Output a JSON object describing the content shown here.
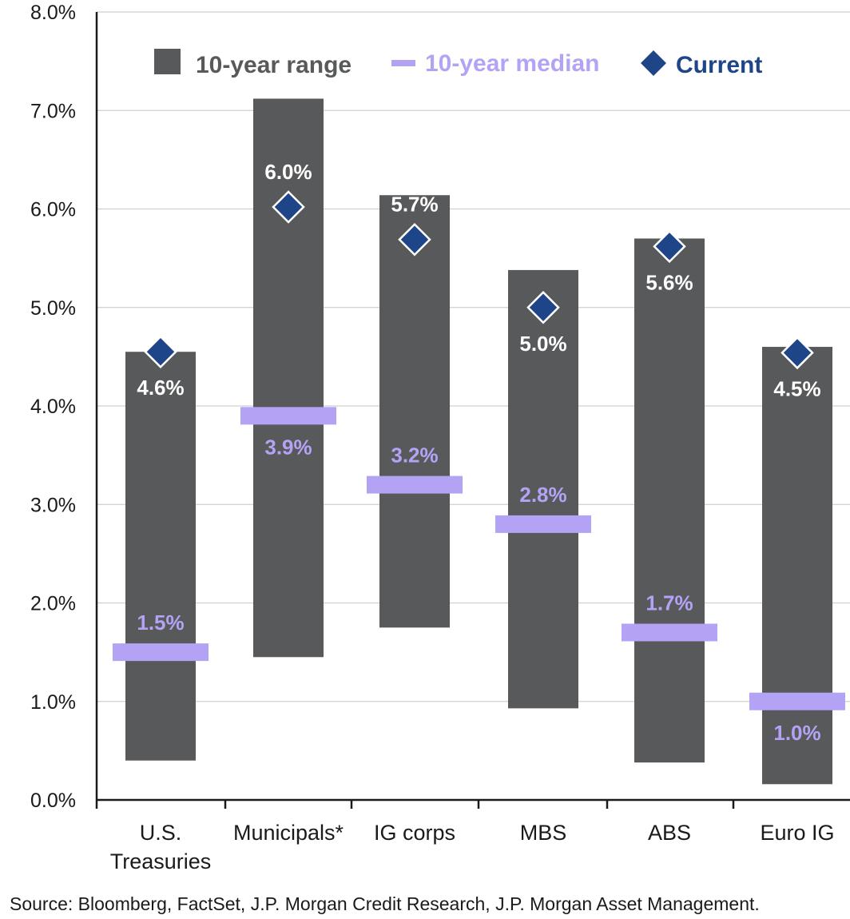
{
  "chart_data": {
    "type": "bar",
    "categories": [
      "U.S. Treasuries",
      "Municipals*",
      "IG corps",
      "MBS",
      "ABS",
      "Euro IG"
    ],
    "category_lines": [
      [
        "U.S.",
        "Treasuries"
      ],
      [
        "Municipals*"
      ],
      [
        "IG corps"
      ],
      [
        "MBS"
      ],
      [
        "ABS"
      ],
      [
        "Euro IG"
      ]
    ],
    "series": [
      {
        "name": "10-year range",
        "values": [
          [
            0.4,
            4.55
          ],
          [
            1.45,
            7.12
          ],
          [
            1.75,
            6.14
          ],
          [
            0.93,
            5.38
          ],
          [
            0.38,
            5.7
          ],
          [
            0.16,
            4.6
          ]
        ]
      },
      {
        "name": "10-year median",
        "values": [
          1.5,
          3.9,
          3.2,
          2.8,
          1.7,
          1.0
        ]
      },
      {
        "name": "Current",
        "values": [
          4.55,
          6.02,
          5.69,
          5.0,
          5.62,
          4.54
        ]
      }
    ],
    "median_labels": [
      "1.5%",
      "3.9%",
      "3.2%",
      "2.8%",
      "1.7%",
      "1.0%"
    ],
    "current_labels": [
      "4.6%",
      "6.0%",
      "5.7%",
      "5.0%",
      "5.6%",
      "4.5%"
    ],
    "current_label_position": [
      "below",
      "above",
      "above",
      "below",
      "below",
      "below"
    ],
    "median_label_position": [
      "above",
      "below",
      "above",
      "above",
      "above",
      "below"
    ],
    "ylim": [
      0,
      8
    ],
    "yticks": [
      "0.0%",
      "1.0%",
      "2.0%",
      "3.0%",
      "4.0%",
      "5.0%",
      "6.0%",
      "7.0%",
      "8.0%"
    ],
    "ytick_values": [
      0,
      1,
      2,
      3,
      4,
      5,
      6,
      7,
      8
    ],
    "grid": true,
    "legend_placement": "top",
    "xlabel": "",
    "ylabel": "",
    "colors": {
      "range": "#58595b",
      "median": "#b4a3f5",
      "current": "#1f4589",
      "grid": "#cfcfcf"
    }
  },
  "source": "Source: Bloomberg, FactSet, J.P. Morgan Credit Research, J.P. Morgan Asset Management."
}
